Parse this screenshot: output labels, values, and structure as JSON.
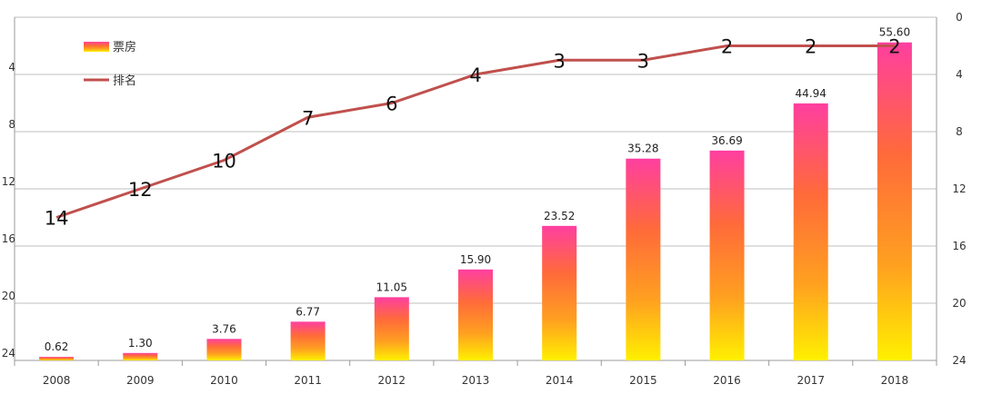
{
  "chart_data": {
    "type": "bar",
    "categories": [
      "2008",
      "2009",
      "2010",
      "2011",
      "2012",
      "2013",
      "2014",
      "2015",
      "2016",
      "2017",
      "2018"
    ],
    "series": [
      {
        "name": "票房",
        "type": "bar",
        "values": [
          0.62,
          1.3,
          3.76,
          6.77,
          11.05,
          15.9,
          23.52,
          35.28,
          36.69,
          44.94,
          55.6
        ],
        "value_labels": [
          "0.62",
          "1.30",
          "3.76",
          "6.77",
          "11.05",
          "15.90",
          "23.52",
          "35.28",
          "36.69",
          "44.94",
          "55.60"
        ],
        "gradient": [
          "#ff3fa0",
          "#ff6a3a",
          "#ffa020",
          "#fff000"
        ]
      },
      {
        "name": "排名",
        "type": "line",
        "axis": "right",
        "values": [
          14,
          12,
          10,
          7,
          6,
          4,
          3,
          3,
          2,
          2,
          2
        ],
        "color": "#c0504d"
      }
    ],
    "left_axis": {
      "min": 0,
      "max": 60
    },
    "right_axis": {
      "min": 0,
      "max": 24,
      "reversed": true,
      "ticks": [
        0,
        4,
        8,
        12,
        16,
        20,
        24
      ]
    },
    "left_tick_labels": [
      "4",
      "8",
      "12",
      "16",
      "20",
      "24"
    ],
    "grid": true,
    "legend_position": "top-left"
  }
}
